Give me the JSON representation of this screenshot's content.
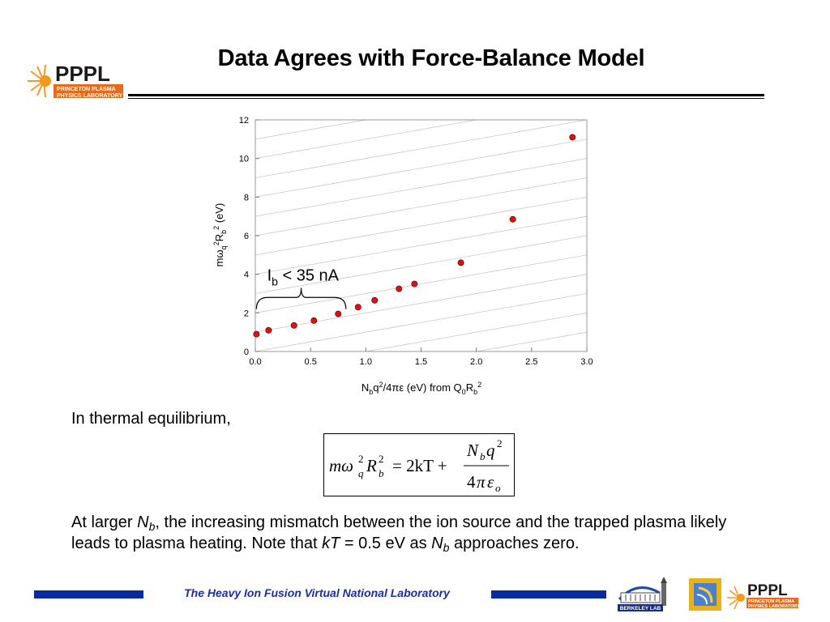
{
  "header": {
    "title": "Data Agrees with Force-Balance Model"
  },
  "logo": {
    "name": "PPPL",
    "line1": "PRINCETON PLASMA",
    "line2": "PHYSICS LABORATORY",
    "colors": {
      "text": "#1a1a1a",
      "sun": "#f39a1e",
      "band": "#e8691a"
    }
  },
  "chart_data": {
    "type": "scatter",
    "xlabel": "N_b q^2 / 4πε (eV) from Q_0 R_b^2",
    "ylabel": "m ω_q^2 R_b^2 (eV)",
    "xlim": [
      0,
      3.0
    ],
    "ylim": [
      0,
      12
    ],
    "x_ticks": [
      "0.0",
      "0.5",
      "1.0",
      "1.5",
      "2.0",
      "2.5",
      "3.0"
    ],
    "y_ticks": [
      "0",
      "2",
      "4",
      "6",
      "8",
      "10",
      "12"
    ],
    "grid": "diagonal lines of slope 1",
    "series": [
      {
        "points": [
          [
            0.01,
            0.9
          ],
          [
            0.12,
            1.1
          ],
          [
            0.35,
            1.35
          ],
          [
            0.53,
            1.6
          ],
          [
            0.75,
            1.95
          ],
          [
            0.93,
            2.3
          ],
          [
            1.08,
            2.65
          ],
          [
            1.3,
            3.25
          ],
          [
            1.44,
            3.5
          ],
          [
            1.86,
            4.6
          ],
          [
            2.33,
            6.85
          ],
          [
            2.87,
            11.1
          ]
        ],
        "color": "#e01010"
      }
    ],
    "annotation": {
      "text_main": "I",
      "text_sub": "b",
      "text_rest": " < 35 nA",
      "brace_x_range": [
        0.01,
        0.82
      ]
    }
  },
  "body": {
    "intro": "In thermal equilibrium,",
    "equation": {
      "lhs_m": "m",
      "lhs_omega": "ω",
      "lhs_sup": "2",
      "lhs_sub": "q",
      "lhs_R": "R",
      "lhs_Rsup": "2",
      "lhs_Rsub": "b",
      "eq": "= 2kT +",
      "num_N": "N",
      "num_sub": "b",
      "num_q": "q",
      "num_sup": "2",
      "den_4": "4",
      "den_pi": "π",
      "den_eps": "ε",
      "den_sub": "o"
    },
    "conclusion": {
      "p1": "At larger ",
      "Nb_main": "N",
      "Nb_sub": "b",
      "p2": ", the increasing mismatch between the ion source and the trapped plasma likely leads to plasma heating. Note that ",
      "kT": "kT",
      "p3": " = 0.5 eV as ",
      "p4": " approaches zero."
    }
  },
  "footer": {
    "text": "The Heavy Ion Fusion Virtual National Laboratory",
    "bar_color": "#0a2aa0",
    "berkeley_label": "BERKELEY LAB"
  }
}
